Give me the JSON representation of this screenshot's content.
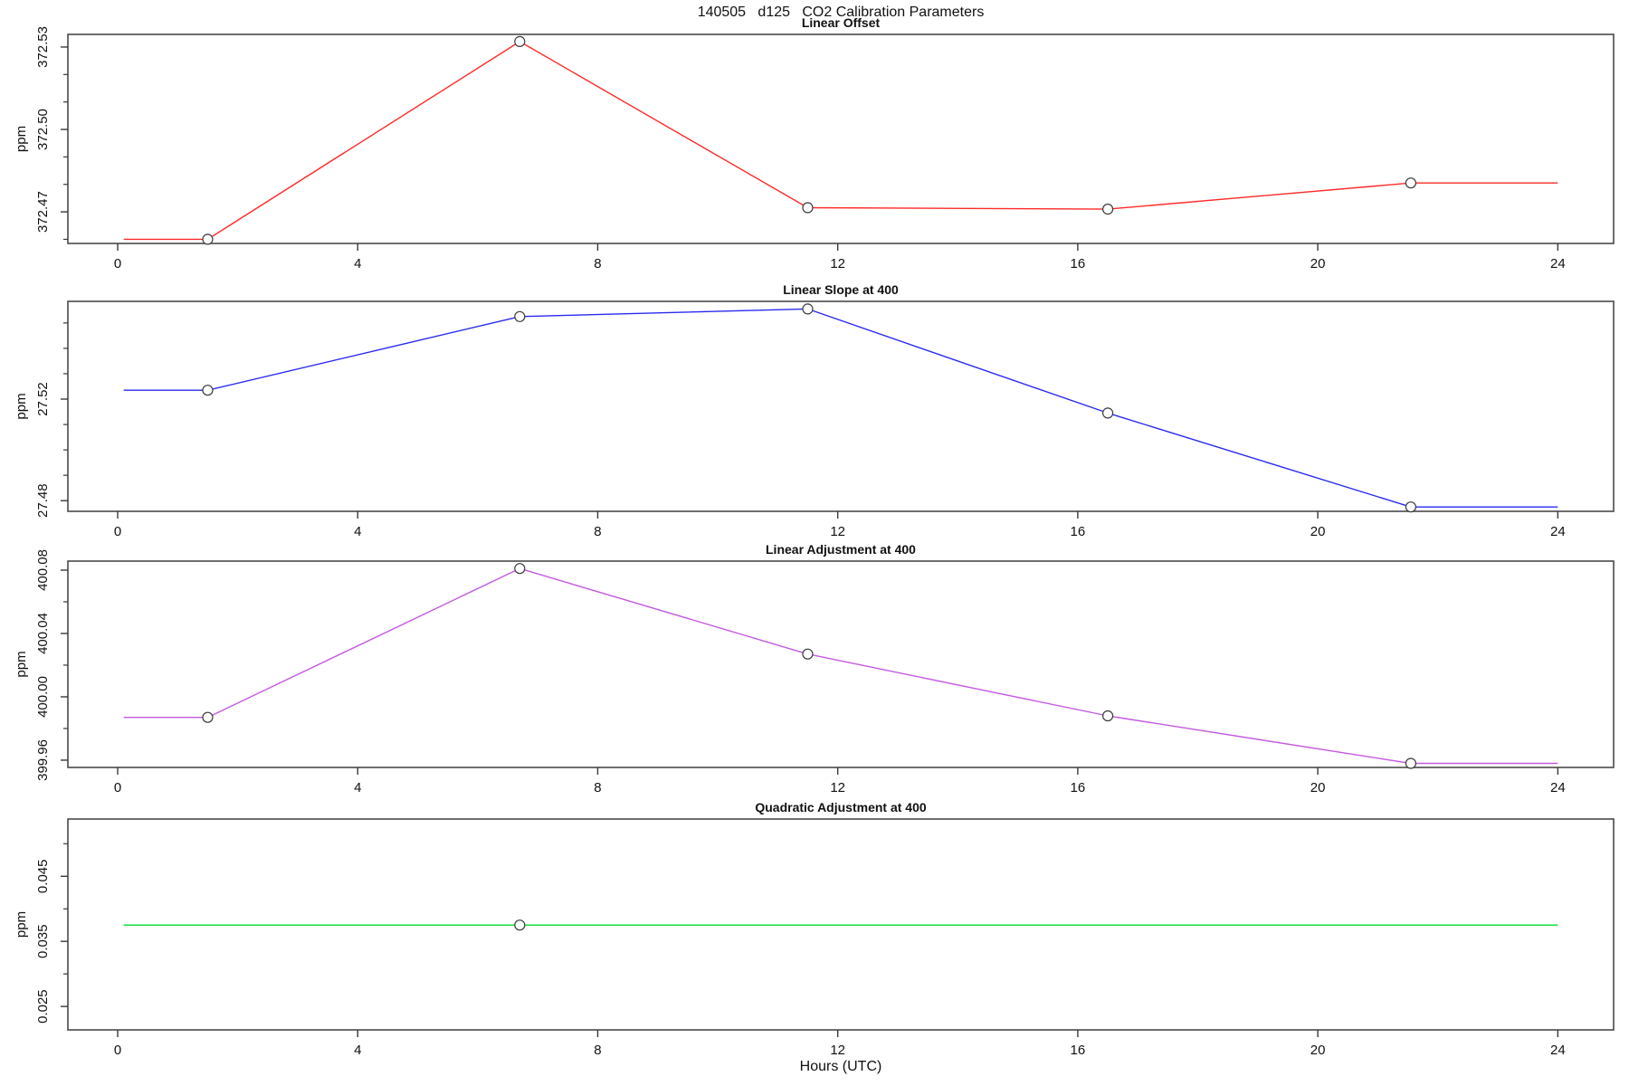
{
  "main_title": "140505   d125   CO2 Calibration Parameters",
  "x_axis_label": "Hours (UTC)",
  "chart_data": [
    {
      "type": "line",
      "title": "Linear Offset",
      "color": "#ff2a2a",
      "ylabel": "ppm",
      "x": [
        0.1,
        1.5,
        6.7,
        11.5,
        16.5,
        21.55,
        24
      ],
      "y": [
        372.46,
        372.46,
        372.532,
        372.4715,
        372.471,
        372.4805,
        372.4805
      ],
      "markers": [
        {
          "x": 1.5,
          "y": 372.46
        },
        {
          "x": 6.7,
          "y": 372.532
        },
        {
          "x": 11.5,
          "y": 372.4715
        },
        {
          "x": 16.5,
          "y": 372.471
        },
        {
          "x": 21.55,
          "y": 372.4805
        }
      ],
      "yticks": [
        {
          "v": 372.47,
          "label": "372.47"
        },
        {
          "v": 372.5,
          "label": "372.50"
        },
        {
          "v": 372.53,
          "label": "372.53"
        }
      ],
      "yticks_minor": [
        372.46,
        372.48,
        372.49,
        372.51,
        372.52
      ],
      "ylim": [
        372.4585,
        372.5346
      ],
      "xticks": [
        0,
        4,
        8,
        12,
        16,
        20,
        24
      ],
      "xlim": [
        -0.83,
        24.93
      ]
    },
    {
      "type": "line",
      "title": "Linear Slope at 400",
      "color": "#2a2af0",
      "ylabel": "ppm",
      "x": [
        0.1,
        1.5,
        6.7,
        11.5,
        16.5,
        21.55,
        24
      ],
      "y": [
        27.5235,
        27.5235,
        27.5525,
        27.5555,
        27.5145,
        27.4775,
        27.4775
      ],
      "markers": [
        {
          "x": 1.5,
          "y": 27.5235
        },
        {
          "x": 6.7,
          "y": 27.5525
        },
        {
          "x": 11.5,
          "y": 27.5555
        },
        {
          "x": 16.5,
          "y": 27.5145
        },
        {
          "x": 21.55,
          "y": 27.4775
        }
      ],
      "yticks": [
        {
          "v": 27.48,
          "label": "27.48"
        },
        {
          "v": 27.52,
          "label": "27.52"
        }
      ],
      "yticks_minor": [
        27.49,
        27.5,
        27.51,
        27.53,
        27.54,
        27.55
      ],
      "ylim": [
        27.4758,
        27.5585
      ],
      "xticks": [
        0,
        4,
        8,
        12,
        16,
        20,
        24
      ],
      "xlim": [
        -0.83,
        24.93
      ]
    },
    {
      "type": "line",
      "title": "Linear Adjustment at 400",
      "color": "#c45ae0",
      "ylabel": "ppm",
      "x": [
        0.1,
        1.5,
        6.7,
        11.5,
        16.5,
        21.55,
        24
      ],
      "y": [
        399.987,
        399.987,
        400.081,
        400.027,
        399.988,
        399.958,
        399.958
      ],
      "markers": [
        {
          "x": 1.5,
          "y": 399.987
        },
        {
          "x": 6.7,
          "y": 400.081
        },
        {
          "x": 11.5,
          "y": 400.027
        },
        {
          "x": 16.5,
          "y": 399.988
        },
        {
          "x": 21.55,
          "y": 399.958
        }
      ],
      "yticks": [
        {
          "v": 399.96,
          "label": "399.96"
        },
        {
          "v": 400.0,
          "label": "400.00"
        },
        {
          "v": 400.04,
          "label": "400.04"
        },
        {
          "v": 400.08,
          "label": "400.08"
        }
      ],
      "yticks_minor": [
        399.98,
        400.02,
        400.06
      ],
      "ylim": [
        399.9554,
        400.0857
      ],
      "xticks": [
        0,
        4,
        8,
        12,
        16,
        20,
        24
      ],
      "xlim": [
        -0.83,
        24.93
      ]
    },
    {
      "type": "line",
      "title": "Quadratic Adjustment at 400",
      "color": "#00dc28",
      "ylabel": "ppm",
      "x": [
        0.1,
        24
      ],
      "y": [
        0.0375,
        0.0375
      ],
      "markers": [
        {
          "x": 6.7,
          "y": 0.0375
        }
      ],
      "yticks": [
        {
          "v": 0.025,
          "label": "0.025"
        },
        {
          "v": 0.035,
          "label": "0.035"
        },
        {
          "v": 0.045,
          "label": "0.045"
        }
      ],
      "yticks_minor": [
        0.03,
        0.04,
        0.05
      ],
      "ylim": [
        0.0214,
        0.0538
      ],
      "xticks": [
        0,
        4,
        8,
        12,
        16,
        20,
        24
      ],
      "xlim": [
        -0.83,
        24.93
      ]
    }
  ]
}
